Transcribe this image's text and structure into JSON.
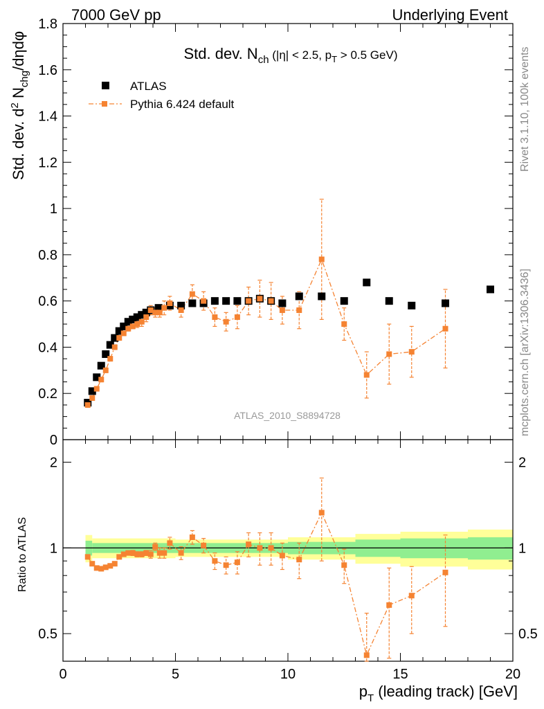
{
  "header": {
    "left": "7000 GeV pp",
    "right": "Underlying Event"
  },
  "side_text": {
    "rivet": "Rivet 3.1.10,  100k events",
    "mcplots": "mcplots.cern.ch [arXiv:1306.3436]"
  },
  "analysis_id": "ATLAS_2010_S8894728",
  "colors": {
    "atlas": "#000000",
    "pythia": "#f58332",
    "band_green": "#90ee90",
    "band_yellow": "#ffff99"
  },
  "chart_data": {
    "type": "scatter",
    "title_parts": {
      "main": "Std. dev. N",
      "sub": "ch",
      "cut_a": " (|η| < 2.5, p",
      "cut_sub": "T",
      "cut_b": " > 0.5 GeV)"
    },
    "ylabel_parts": {
      "a": "Std. dev. d",
      "sup": "2",
      "b": " N",
      "sub": "chg",
      "c": "/dηdφ"
    },
    "xlabel_parts": {
      "a": "p",
      "sub": "T",
      "b": " (leading track) [GeV]"
    },
    "ratio_ylabel": "Ratio to ATLAS",
    "xlim": [
      0,
      20
    ],
    "ylim": [
      0,
      1.8
    ],
    "ratio_ylim": [
      0.4,
      2.4
    ],
    "xticks": [
      "0",
      "5",
      "10",
      "15",
      "20"
    ],
    "yticks": [
      "0",
      "0.2",
      "0.4",
      "0.6",
      "0.8",
      "1",
      "1.2",
      "1.4",
      "1.6",
      "1.8"
    ],
    "ratio_ticks": [
      "0.5",
      "1",
      "2"
    ],
    "legend": [
      {
        "name": "ATLAS"
      },
      {
        "name": "Pythia 6.424 default"
      }
    ],
    "series": [
      {
        "name": "ATLAS",
        "x": [
          1.1,
          1.3,
          1.5,
          1.7,
          1.9,
          2.1,
          2.3,
          2.5,
          2.7,
          2.9,
          3.1,
          3.3,
          3.5,
          3.7,
          3.9,
          4.25,
          4.75,
          5.25,
          5.75,
          6.25,
          6.75,
          7.25,
          7.75,
          8.25,
          8.75,
          9.25,
          9.75,
          10.5,
          11.5,
          12.5,
          13.5,
          14.5,
          15.5,
          17.0,
          19.0
        ],
        "y": [
          0.16,
          0.21,
          0.27,
          0.32,
          0.37,
          0.41,
          0.44,
          0.47,
          0.49,
          0.51,
          0.52,
          0.53,
          0.54,
          0.55,
          0.56,
          0.57,
          0.58,
          0.58,
          0.59,
          0.59,
          0.6,
          0.6,
          0.6,
          0.6,
          0.61,
          0.6,
          0.59,
          0.62,
          0.62,
          0.6,
          0.68,
          0.6,
          0.58,
          0.59,
          0.65
        ]
      },
      {
        "name": "Pythia 6.424 default",
        "x": [
          1.1,
          1.3,
          1.5,
          1.7,
          1.9,
          2.1,
          2.3,
          2.5,
          2.7,
          2.9,
          3.1,
          3.3,
          3.5,
          3.7,
          3.9,
          4.1,
          4.3,
          4.5,
          4.75,
          5.25,
          5.75,
          6.25,
          6.75,
          7.25,
          7.75,
          8.25,
          8.75,
          9.25,
          9.75,
          10.5,
          11.5,
          12.5,
          13.5,
          14.5,
          15.5,
          17.0
        ],
        "y": [
          0.15,
          0.18,
          0.22,
          0.26,
          0.3,
          0.35,
          0.4,
          0.44,
          0.46,
          0.48,
          0.49,
          0.5,
          0.51,
          0.53,
          0.56,
          0.55,
          0.55,
          0.57,
          0.59,
          0.56,
          0.63,
          0.6,
          0.53,
          0.51,
          0.53,
          0.6,
          0.61,
          0.6,
          0.56,
          0.56,
          0.78,
          0.5,
          0.28,
          0.37,
          0.38,
          0.48
        ],
        "yerr": [
          0.01,
          0.01,
          0.01,
          0.01,
          0.01,
          0.01,
          0.01,
          0.01,
          0.01,
          0.01,
          0.01,
          0.015,
          0.02,
          0.02,
          0.02,
          0.02,
          0.02,
          0.03,
          0.03,
          0.03,
          0.04,
          0.04,
          0.04,
          0.04,
          0.05,
          0.06,
          0.08,
          0.08,
          0.06,
          0.08,
          0.26,
          0.07,
          0.1,
          0.13,
          0.11,
          0.17
        ]
      }
    ],
    "ratio_series": {
      "name": "Pythia 6.424 default",
      "x": [
        1.1,
        1.3,
        1.5,
        1.7,
        1.9,
        2.1,
        2.3,
        2.5,
        2.7,
        2.9,
        3.1,
        3.3,
        3.5,
        3.7,
        3.9,
        4.1,
        4.3,
        4.5,
        4.75,
        5.25,
        5.75,
        6.25,
        6.75,
        7.25,
        7.75,
        8.25,
        8.75,
        9.25,
        9.75,
        10.5,
        11.5,
        12.5,
        13.5,
        14.5,
        15.5,
        17.0
      ],
      "y": [
        0.93,
        0.88,
        0.85,
        0.845,
        0.855,
        0.865,
        0.88,
        0.93,
        0.95,
        0.96,
        0.96,
        0.95,
        0.95,
        0.96,
        0.95,
        1.01,
        0.96,
        0.96,
        1.04,
        0.96,
        1.09,
        1.02,
        0.9,
        0.87,
        0.89,
        1.03,
        1.0,
        1.0,
        0.94,
        0.91,
        1.33,
        0.87,
        0.42,
        0.63,
        0.68,
        0.82
      ],
      "yerr": [
        0.01,
        0.01,
        0.01,
        0.01,
        0.01,
        0.01,
        0.01,
        0.01,
        0.01,
        0.01,
        0.02,
        0.02,
        0.02,
        0.02,
        0.03,
        0.03,
        0.04,
        0.04,
        0.05,
        0.05,
        0.06,
        0.06,
        0.06,
        0.06,
        0.08,
        0.1,
        0.13,
        0.13,
        0.1,
        0.13,
        0.43,
        0.12,
        0.17,
        0.22,
        0.18,
        0.29
      ]
    },
    "bands": {
      "x_edges": [
        1.0,
        1.3,
        5.0,
        10.0,
        13.0,
        15.0,
        18.0,
        20.0
      ],
      "green": [
        0.06,
        0.04,
        0.04,
        0.05,
        0.07,
        0.08,
        0.09
      ],
      "yellow": [
        0.11,
        0.08,
        0.07,
        0.09,
        0.12,
        0.14,
        0.16
      ]
    }
  }
}
